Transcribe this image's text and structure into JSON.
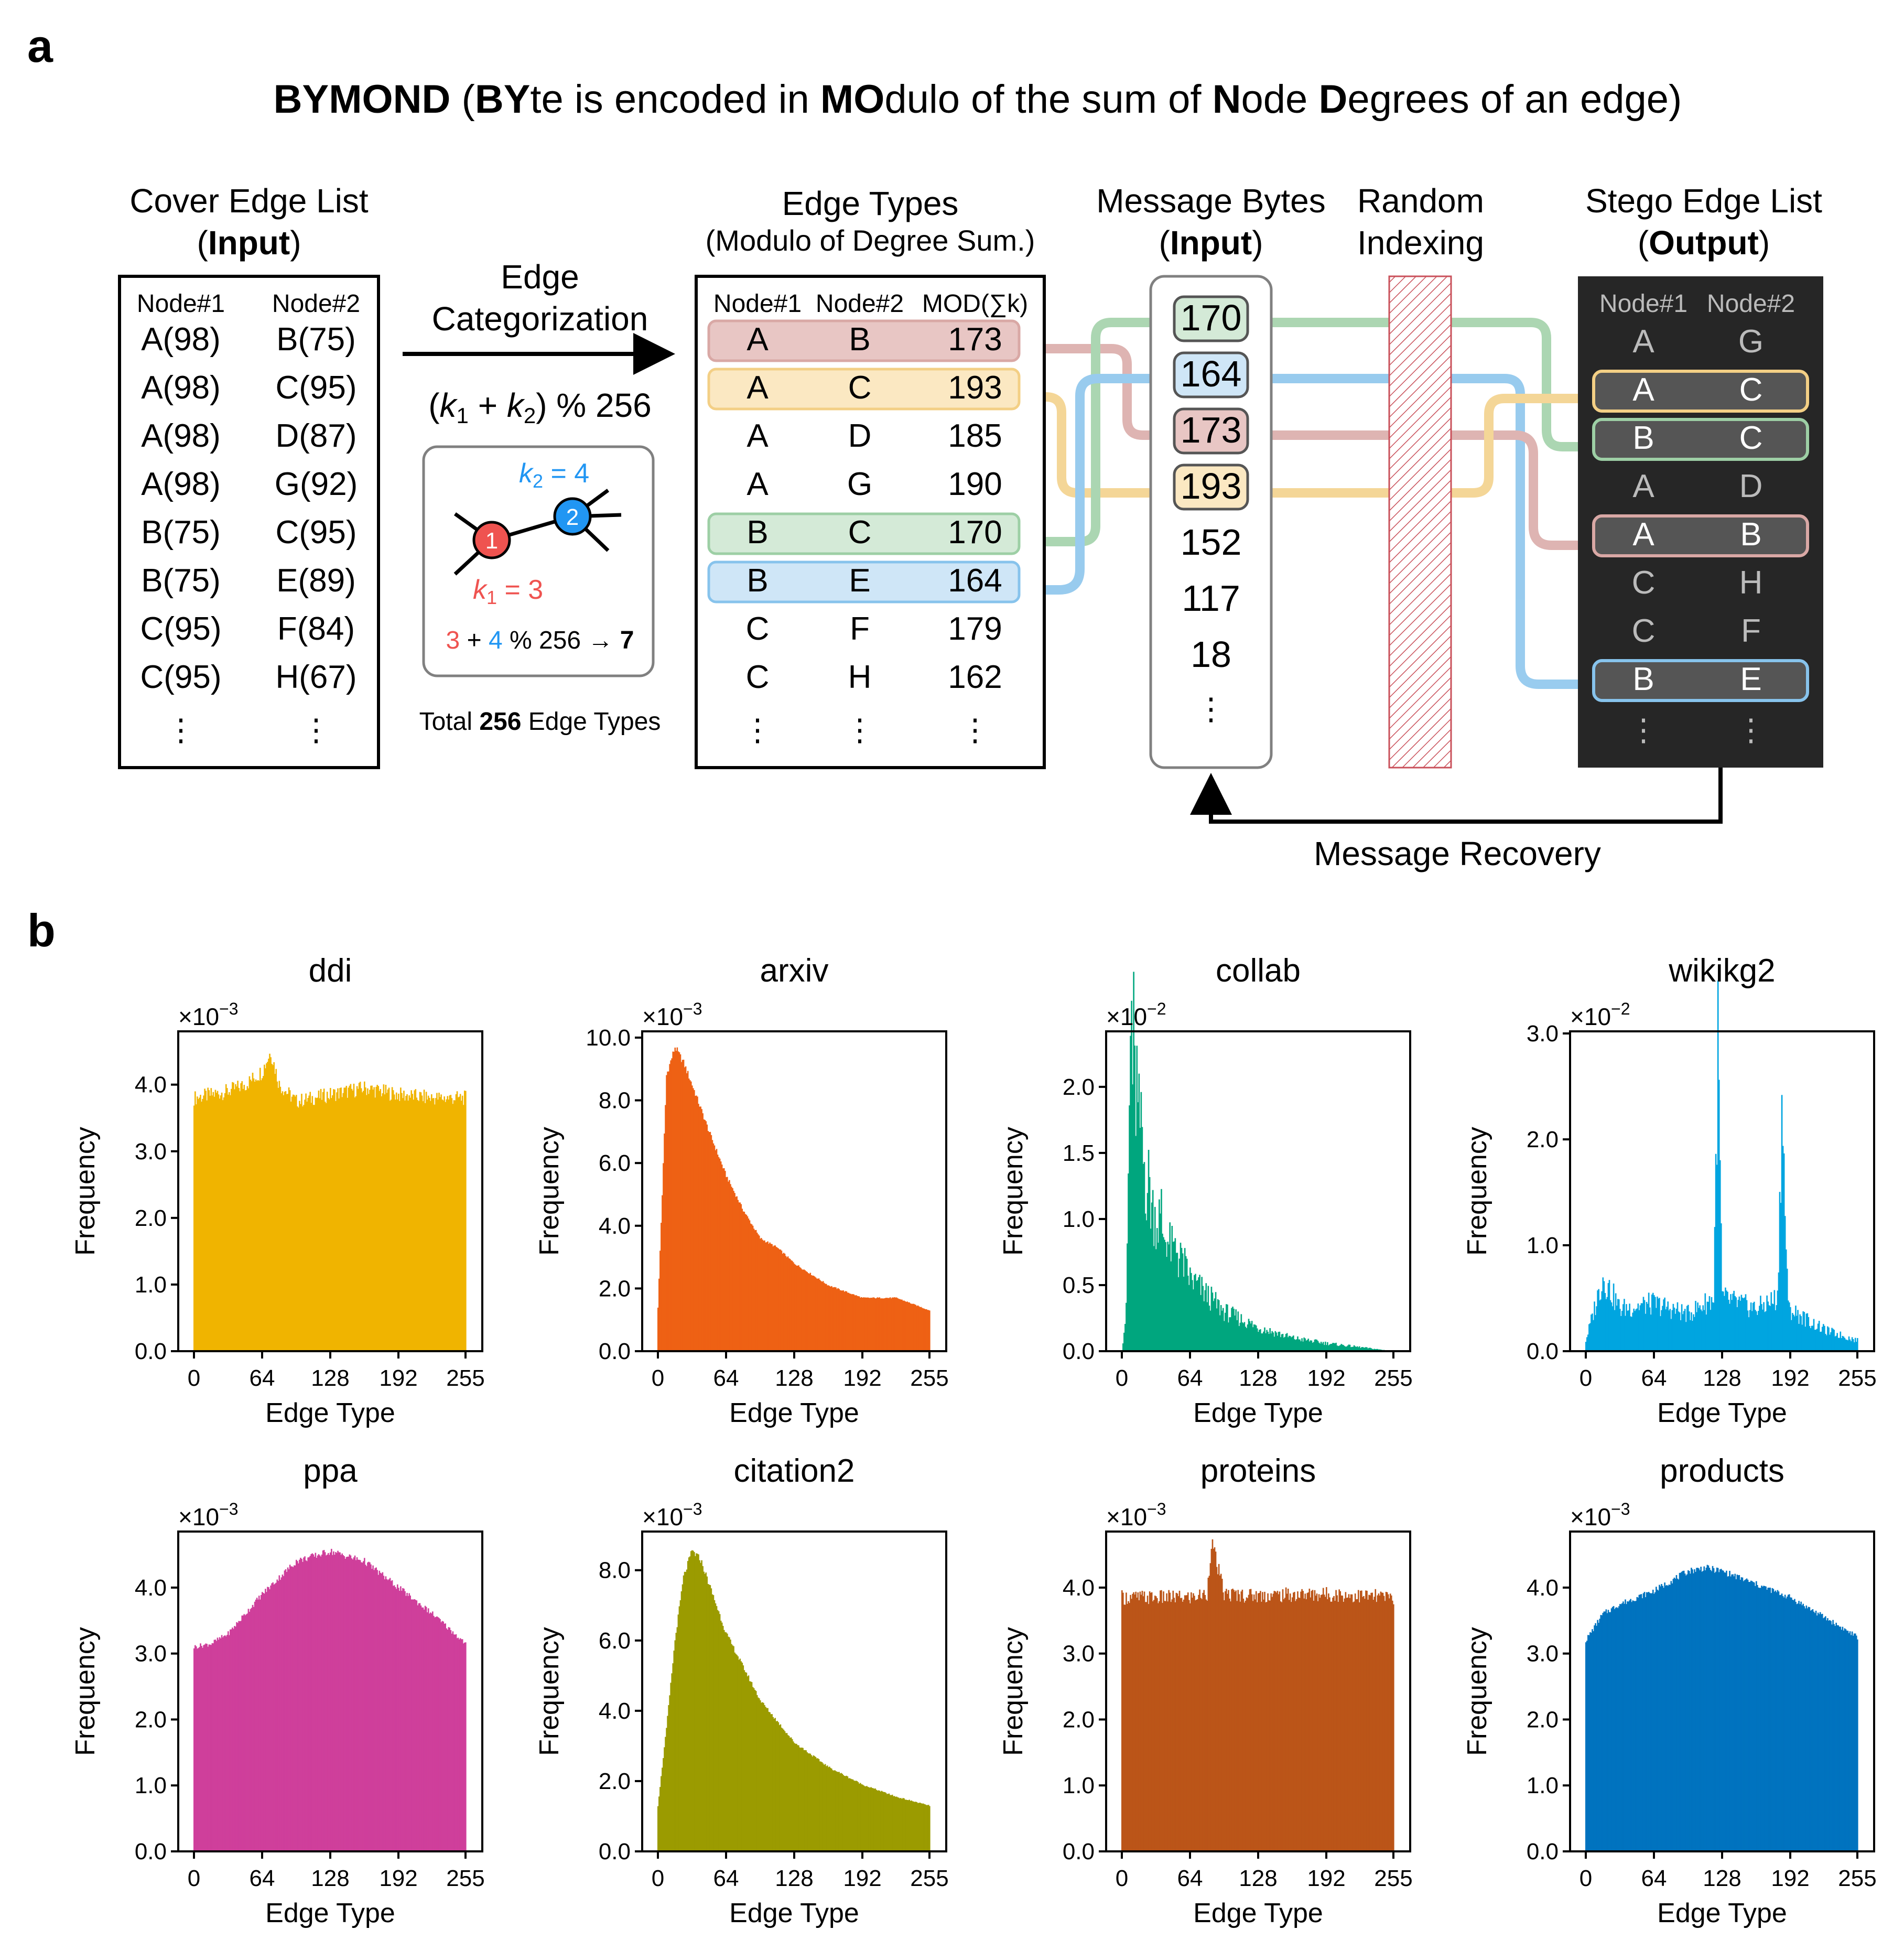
{
  "panel_a": {
    "label": "a",
    "title": {
      "parts": [
        {
          "t": "BYMOND",
          "b": true
        },
        {
          "t": " (",
          "b": false
        },
        {
          "t": "BY",
          "b": true
        },
        {
          "t": "te is encoded in ",
          "b": false
        },
        {
          "t": "MO",
          "b": true
        },
        {
          "t": "dulo of the sum of ",
          "b": false
        },
        {
          "t": "N",
          "b": true
        },
        {
          "t": "ode ",
          "b": false
        },
        {
          "t": "D",
          "b": true
        },
        {
          "t": "egrees of an edge)",
          "b": false
        }
      ]
    },
    "cover": {
      "title1": "Cover Edge List",
      "title2_pre": "(",
      "title2_bold": "Input",
      "title2_post": ")",
      "col1": "Node#1",
      "col2": "Node#2",
      "rows": [
        [
          "A(98)",
          "B(75)"
        ],
        [
          "A(98)",
          "C(95)"
        ],
        [
          "A(98)",
          "D(87)"
        ],
        [
          "A(98)",
          "G(92)"
        ],
        [
          "B(75)",
          "C(95)"
        ],
        [
          "B(75)",
          "E(89)"
        ],
        [
          "C(95)",
          "F(84)"
        ],
        [
          "C(95)",
          "H(67)"
        ]
      ],
      "ellipsis": "⋮"
    },
    "categorization": {
      "label1": "Edge",
      "label2": "Categorization",
      "formula_k1": "k",
      "formula_sub1": "1",
      "formula_plus": " + ",
      "formula_k2": "k",
      "formula_sub2": "2",
      "formula_open": "(",
      "formula_close": ") % 256",
      "k2_label": "k",
      "k2_sub": "2",
      "k2_val": " = 4",
      "k1_label": "k",
      "k1_sub": "1",
      "k1_val": " = 3",
      "node1": "1",
      "node2": "2",
      "eq_a": "3",
      "eq_plus": " + ",
      "eq_b": "4",
      "eq_rest": " % 256 → ",
      "eq_result": "7",
      "total_pre": "Total ",
      "total_bold": "256",
      "total_post": " Edge Types"
    },
    "edge_types": {
      "title1": "Edge Types",
      "title2": "(Modulo of Degree Sum.)",
      "col1": "Node#1",
      "col2": "Node#2",
      "col3": "MOD(∑k)",
      "rows": [
        [
          "A",
          "B",
          "173"
        ],
        [
          "A",
          "C",
          "193"
        ],
        [
          "A",
          "D",
          "185"
        ],
        [
          "A",
          "G",
          "190"
        ],
        [
          "B",
          "C",
          "170"
        ],
        [
          "B",
          "E",
          "164"
        ],
        [
          "C",
          "F",
          "179"
        ],
        [
          "C",
          "H",
          "162"
        ]
      ],
      "ellipsis": "⋮"
    },
    "message": {
      "title1": "Message Bytes",
      "title2_pre": "(",
      "title2_bold": "Input",
      "title2_post": ")",
      "bytes": [
        "170",
        "164",
        "173",
        "193",
        "152",
        "117",
        "18"
      ],
      "ellipsis": "⋮"
    },
    "random": {
      "title1": "Random",
      "title2": "Indexing"
    },
    "stego": {
      "title1": "Stego Edge List",
      "title2_pre": "(",
      "title2_bold": "Output",
      "title2_post": ")",
      "col1": "Node#1",
      "col2": "Node#2",
      "rows": [
        [
          "A",
          "G"
        ],
        [
          "A",
          "C"
        ],
        [
          "B",
          "C"
        ],
        [
          "A",
          "D"
        ],
        [
          "A",
          "B"
        ],
        [
          "C",
          "H"
        ],
        [
          "C",
          "F"
        ],
        [
          "B",
          "E"
        ]
      ],
      "ellipsis": "⋮"
    },
    "recovery": "Message Recovery",
    "colors": {
      "red": "#e8c6c4",
      "red_border": "#d9a8a5",
      "yellow": "#fbe8c2",
      "yellow_border": "#f3cf85",
      "green": "#d4ead7",
      "green_border": "#9dcfa5",
      "blue": "#cfe6f7",
      "blue_border": "#87c3ec",
      "k1": "#ef5350",
      "k2": "#2196f3"
    }
  },
  "panel_b": {
    "label": "b",
    "xlabel": "Edge Type",
    "ylabel": "Frequency"
  },
  "chart_data": [
    {
      "type": "bar",
      "title": "ddi",
      "color": "#f0b400",
      "xlabel": "Edge Type",
      "ylabel": "Frequency",
      "exponent": "-3",
      "ylim": [
        0,
        4.8
      ],
      "yticks": [
        "0.0",
        "1.0",
        "2.0",
        "3.0",
        "4.0"
      ],
      "xticks": [
        "0",
        "64",
        "128",
        "192",
        "255"
      ],
      "series": [
        {
          "name": "ddi",
          "x": [
            0,
            16,
            32,
            48,
            64,
            72,
            80,
            96,
            128,
            160,
            192,
            224,
            255
          ],
          "values": [
            3.8,
            3.85,
            3.9,
            4.0,
            4.2,
            4.5,
            4.0,
            3.75,
            3.85,
            3.95,
            3.85,
            3.8,
            3.8
          ]
        }
      ]
    },
    {
      "type": "bar",
      "title": "arxiv",
      "color": "#ee6114",
      "xlabel": "Edge Type",
      "ylabel": "Frequency",
      "exponent": "-3",
      "ylim": [
        0,
        10.2
      ],
      "yticks": [
        "0.0",
        "2.0",
        "4.0",
        "6.0",
        "8.0",
        "10.0"
      ],
      "xticks": [
        "0",
        "64",
        "128",
        "192",
        "255"
      ],
      "series": [
        {
          "name": "arxiv",
          "x": [
            0,
            4,
            8,
            16,
            24,
            32,
            48,
            64,
            80,
            96,
            112,
            128,
            160,
            192,
            224,
            255
          ],
          "values": [
            1.4,
            5.0,
            8.8,
            9.7,
            9.2,
            8.5,
            7.0,
            5.6,
            4.5,
            3.6,
            3.3,
            2.8,
            2.1,
            1.7,
            1.7,
            1.3
          ]
        }
      ]
    },
    {
      "type": "bar",
      "title": "collab",
      "color": "#00a67e",
      "xlabel": "Edge Type",
      "ylabel": "Frequency",
      "exponent": "-2",
      "ylim": [
        0,
        2.42
      ],
      "yticks": [
        "0.0",
        "0.5",
        "1.0",
        "1.5",
        "2.0"
      ],
      "xticks": [
        "0",
        "64",
        "128",
        "192",
        "255"
      ],
      "series": [
        {
          "name": "collab",
          "x": [
            0,
            4,
            8,
            12,
            16,
            24,
            32,
            48,
            64,
            96,
            128,
            160,
            192,
            224,
            255
          ],
          "values": [
            0.0,
            0.3,
            2.3,
            2.0,
            1.6,
            1.2,
            1.0,
            0.75,
            0.55,
            0.3,
            0.18,
            0.1,
            0.06,
            0.03,
            0.0
          ]
        }
      ]
    },
    {
      "type": "bar",
      "title": "wikikg2",
      "color": "#00a5e0",
      "xlabel": "Edge Type",
      "ylabel": "Frequency",
      "exponent": "-2",
      "ylim": [
        0,
        3.02
      ],
      "yticks": [
        "0.0",
        "1.0",
        "2.0",
        "3.0"
      ],
      "xticks": [
        "0",
        "64",
        "128",
        "192",
        "255"
      ],
      "series": [
        {
          "name": "wikikg2",
          "x": [
            0,
            16,
            32,
            64,
            96,
            120,
            124,
            128,
            160,
            180,
            184,
            190,
            224,
            255
          ],
          "values": [
            0.1,
            0.7,
            0.4,
            0.45,
            0.35,
            0.5,
            2.9,
            0.5,
            0.4,
            0.5,
            2.3,
            0.4,
            0.2,
            0.1
          ]
        }
      ]
    },
    {
      "type": "bar",
      "title": "ppa",
      "color": "#cf3f9b",
      "xlabel": "Edge Type",
      "ylabel": "Frequency",
      "exponent": "-3",
      "ylim": [
        0,
        4.85
      ],
      "yticks": [
        "0.0",
        "1.0",
        "2.0",
        "3.0",
        "4.0"
      ],
      "xticks": [
        "0",
        "64",
        "128",
        "192",
        "255"
      ],
      "series": [
        {
          "name": "ppa",
          "x": [
            0,
            16,
            32,
            64,
            96,
            128,
            160,
            192,
            224,
            255
          ],
          "values": [
            3.1,
            3.15,
            3.3,
            3.9,
            4.4,
            4.55,
            4.4,
            4.0,
            3.6,
            3.15
          ]
        }
      ]
    },
    {
      "type": "bar",
      "title": "citation2",
      "color": "#9b9b00",
      "xlabel": "Edge Type",
      "ylabel": "Frequency",
      "exponent": "-3",
      "ylim": [
        0,
        9.1
      ],
      "yticks": [
        "0.0",
        "2.0",
        "4.0",
        "6.0",
        "8.0"
      ],
      "xticks": [
        "0",
        "64",
        "128",
        "192",
        "255"
      ],
      "series": [
        {
          "name": "citation2",
          "x": [
            0,
            8,
            16,
            24,
            32,
            40,
            48,
            64,
            96,
            128,
            160,
            192,
            224,
            255
          ],
          "values": [
            1.3,
            3.5,
            6.0,
            7.8,
            8.55,
            8.3,
            7.6,
            6.2,
            4.3,
            3.1,
            2.4,
            1.9,
            1.55,
            1.3
          ]
        }
      ]
    },
    {
      "type": "bar",
      "title": "proteins",
      "color": "#bb5518",
      "xlabel": "Edge Type",
      "ylabel": "Frequency",
      "exponent": "-3",
      "ylim": [
        0,
        4.85
      ],
      "yticks": [
        "0.0",
        "1.0",
        "2.0",
        "3.0",
        "4.0"
      ],
      "xticks": [
        "0",
        "64",
        "128",
        "192",
        "255"
      ],
      "series": [
        {
          "name": "proteins",
          "x": [
            0,
            64,
            80,
            84,
            96,
            128,
            192,
            255
          ],
          "values": [
            3.85,
            3.85,
            3.9,
            4.7,
            3.9,
            3.88,
            3.9,
            3.85
          ]
        }
      ]
    },
    {
      "type": "bar",
      "title": "products",
      "color": "#0073bf",
      "xlabel": "Edge Type",
      "ylabel": "Frequency",
      "exponent": "-3",
      "ylim": [
        0,
        4.85
      ],
      "yticks": [
        "0.0",
        "1.0",
        "2.0",
        "3.0",
        "4.0"
      ],
      "xticks": [
        "0",
        "64",
        "128",
        "192",
        "255"
      ],
      "series": [
        {
          "name": "products",
          "x": [
            0,
            16,
            32,
            64,
            96,
            112,
            128,
            160,
            192,
            224,
            255
          ],
          "values": [
            3.2,
            3.6,
            3.75,
            3.95,
            4.25,
            4.3,
            4.25,
            4.05,
            3.85,
            3.55,
            3.25
          ]
        }
      ]
    }
  ]
}
